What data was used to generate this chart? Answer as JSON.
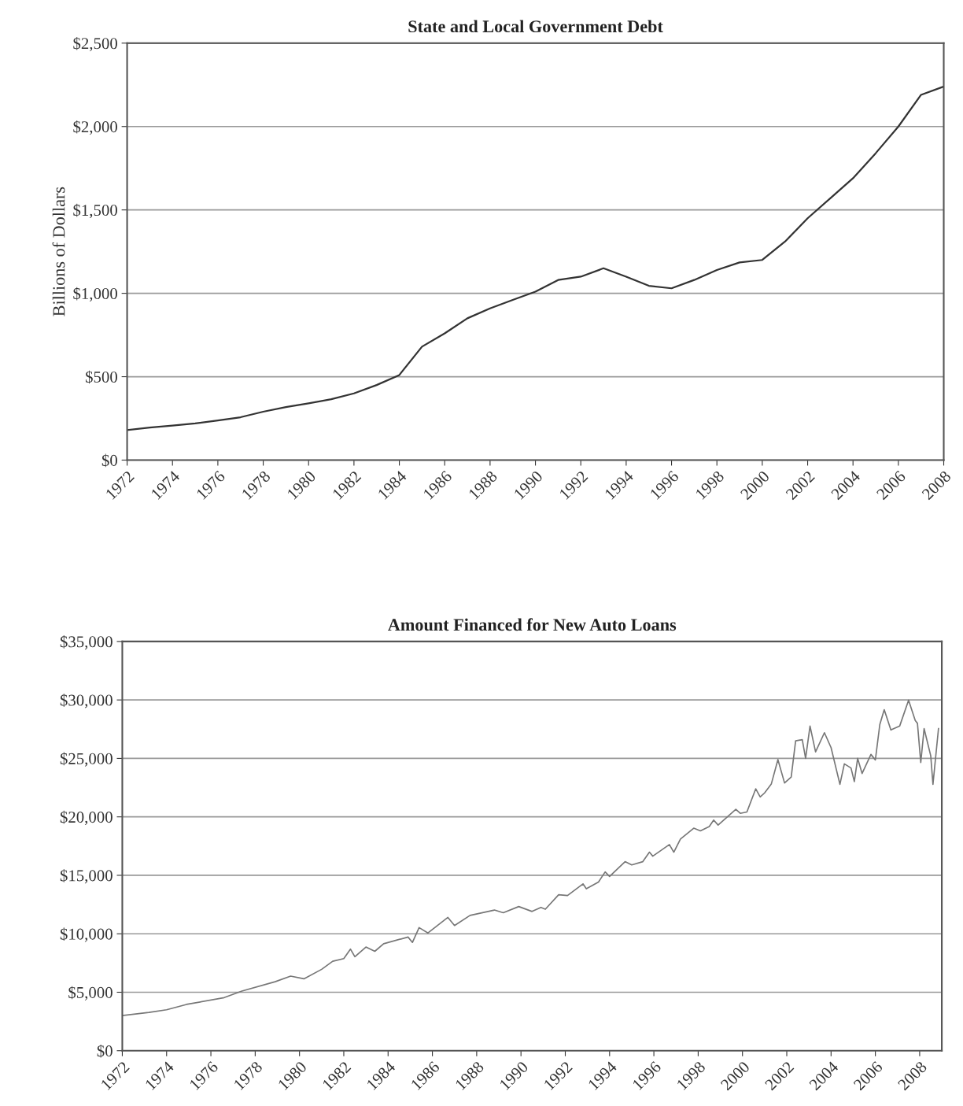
{
  "chart_data": [
    {
      "type": "line",
      "title": "State and Local Government Debt",
      "ylabel": "Billions of Dollars",
      "x": [
        1972,
        1973,
        1974,
        1975,
        1976,
        1977,
        1978,
        1979,
        1980,
        1981,
        1982,
        1983,
        1984,
        1985,
        1986,
        1987,
        1988,
        1989,
        1990,
        1991,
        1992,
        1993,
        1994,
        1995,
        1996,
        1997,
        1998,
        1999,
        2000,
        2001,
        2002,
        2003,
        2004,
        2005,
        2006,
        2007,
        2008
      ],
      "series": [
        {
          "color": "#333333",
          "values": [
            180,
            195,
            207,
            220,
            238,
            257,
            290,
            318,
            340,
            365,
            400,
            450,
            510,
            680,
            760,
            850,
            910,
            960,
            1010,
            1080,
            1100,
            1150,
            1100,
            1045,
            1030,
            1080,
            1140,
            1185,
            1200,
            1310,
            1450,
            1570,
            1690,
            1840,
            2000,
            2190,
            2240
          ]
        }
      ],
      "xlim": [
        1972,
        2008
      ],
      "xticks": [
        1972,
        1974,
        1976,
        1978,
        1980,
        1982,
        1984,
        1986,
        1988,
        1990,
        1992,
        1994,
        1996,
        1998,
        2000,
        2002,
        2004,
        2006,
        2008
      ],
      "ylim": [
        0,
        2500
      ],
      "yticks": [
        {
          "value": 0,
          "label": "$0"
        },
        {
          "value": 500,
          "label": "$500"
        },
        {
          "value": 1000,
          "label": "$1,000"
        },
        {
          "value": 1500,
          "label": "$1,500"
        },
        {
          "value": 2000,
          "label": "$2,000"
        },
        {
          "value": 2500,
          "label": "$2,500"
        }
      ],
      "grid": "y",
      "marker": "none",
      "line_style": "solid"
    },
    {
      "type": "line",
      "title": "Amount Financed for New Auto Loans",
      "x": [
        1972.0,
        1973.2,
        1974.0,
        1974.9,
        1976.6,
        1977.4,
        1978.9,
        1979.6,
        1980.2,
        1981.0,
        1981.5,
        1982.0,
        1982.3,
        1982.5,
        1983.0,
        1983.4,
        1983.8,
        1984.9,
        1985.1,
        1985.4,
        1985.8,
        1986.7,
        1987.0,
        1987.7,
        1988.8,
        1989.2,
        1989.9,
        1990.5,
        1990.9,
        1991.1,
        1991.7,
        1992.1,
        1992.8,
        1992.95,
        1993.5,
        1993.8,
        1994.0,
        1994.7,
        1995.0,
        1995.5,
        1995.8,
        1995.95,
        1996.7,
        1996.9,
        1997.2,
        1997.8,
        1998.1,
        1998.5,
        1998.7,
        1998.9,
        1999.7,
        1999.9,
        2000.2,
        2000.6,
        2000.8,
        2001.0,
        2001.3,
        2001.6,
        2001.9,
        2002.2,
        2002.4,
        2002.7,
        2002.85,
        2003.05,
        2003.3,
        2003.7,
        2004.0,
        2004.4,
        2004.6,
        2004.9,
        2005.05,
        2005.2,
        2005.4,
        2005.8,
        2006.0,
        2006.2,
        2006.4,
        2006.7,
        2007.1,
        2007.5,
        2007.8,
        2007.9,
        2008.05,
        2008.2,
        2008.5,
        2008.6,
        2008.85
      ],
      "series": [
        {
          "color": "#777777",
          "values": [
            3000,
            3270,
            3500,
            3960,
            4540,
            5100,
            5900,
            6380,
            6150,
            6960,
            7650,
            7880,
            8690,
            8040,
            8870,
            8500,
            9150,
            9720,
            9260,
            10530,
            10070,
            11400,
            10710,
            11570,
            12030,
            11800,
            12330,
            11910,
            12260,
            12100,
            13340,
            13270,
            14270,
            13850,
            14430,
            15290,
            14900,
            16170,
            15890,
            16170,
            16980,
            16640,
            17630,
            16980,
            18100,
            19030,
            18800,
            19170,
            19730,
            19300,
            20650,
            20300,
            20420,
            22400,
            21700,
            22050,
            22800,
            24900,
            22900,
            23400,
            26500,
            26600,
            25000,
            27760,
            25560,
            27200,
            25920,
            22780,
            24530,
            24180,
            23020,
            25000,
            23710,
            25340,
            24870,
            27890,
            29170,
            27430,
            27780,
            29980,
            28240,
            28000,
            24640,
            27550,
            25220,
            22780,
            27550
          ]
        }
      ],
      "xlim": [
        1972,
        2009
      ],
      "xticks": [
        1972,
        1974,
        1976,
        1978,
        1980,
        1982,
        1984,
        1986,
        1988,
        1990,
        1992,
        1994,
        1996,
        1998,
        2000,
        2002,
        2004,
        2006,
        2008
      ],
      "ylim": [
        0,
        35000
      ],
      "yticks": [
        {
          "value": 0,
          "label": "$0"
        },
        {
          "value": 5000,
          "label": "$5,000"
        },
        {
          "value": 10000,
          "label": "$10,000"
        },
        {
          "value": 15000,
          "label": "$15,000"
        },
        {
          "value": 20000,
          "label": "$20,000"
        },
        {
          "value": 25000,
          "label": "$25,000"
        },
        {
          "value": 30000,
          "label": "$30,000"
        },
        {
          "value": 35000,
          "label": "$35,000"
        }
      ],
      "grid": "y",
      "marker": "none",
      "line_style": "solid"
    }
  ]
}
